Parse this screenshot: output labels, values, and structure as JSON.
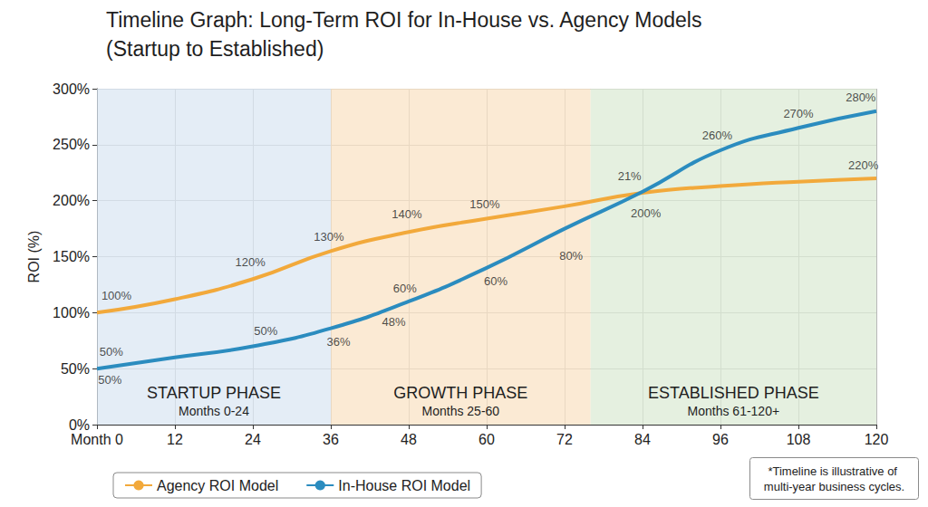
{
  "chart_data": {
    "type": "line",
    "title": "Timeline Graph: Long-Term ROI for In-House vs. Agency Models (Startup to Established)",
    "y_label": "ROI (%)",
    "x": [
      0,
      12,
      24,
      36,
      48,
      60,
      72,
      84,
      96,
      108,
      120
    ],
    "series": [
      {
        "name": "Agency ROI Model",
        "color": "#f2a93b",
        "marker": "none",
        "line_style": "solid",
        "values": [
          100,
          112,
          130,
          155,
          172,
          184,
          195,
          207,
          213,
          217,
          220
        ]
      },
      {
        "name": "In-House ROI Model",
        "color": "#2b8cbf",
        "marker": "none",
        "line_style": "solid",
        "values": [
          50,
          60,
          70,
          86,
          110,
          140,
          175,
          208,
          245,
          265,
          280
        ]
      }
    ],
    "xlim": [
      0,
      120
    ],
    "xticks": [
      {
        "value": 0,
        "label": "Month 0"
      },
      12,
      24,
      36,
      48,
      60,
      72,
      84,
      96,
      108,
      120
    ],
    "ylim": [
      0,
      300
    ],
    "yticks": [
      {
        "value": 0,
        "label": "0%"
      },
      {
        "value": 50,
        "label": "50%"
      },
      {
        "value": 100,
        "label": "100%"
      },
      {
        "value": 150,
        "label": "150%"
      },
      {
        "value": 200,
        "label": "200%"
      },
      {
        "value": 250,
        "label": "250%"
      },
      {
        "value": 300,
        "label": "300%"
      }
    ],
    "grid": true,
    "legend": "bottom",
    "phases": [
      {
        "label": "STARTUP PHASE",
        "sublabel": "Months 0-24",
        "start": 0,
        "end": 36,
        "color": "#dbe7f3"
      },
      {
        "label": "GROWTH PHASE",
        "sublabel": "Months 25-60",
        "start": 36,
        "end": 76,
        "color": "#fae3c6"
      },
      {
        "label": "ESTABLISHED PHASE",
        "sublabel": "Months 61-120+",
        "start": 76,
        "end": 120,
        "color": "#dcebd6"
      }
    ],
    "annotations": [
      {
        "text": "100%",
        "x": 3,
        "y": 115
      },
      {
        "text": "120%",
        "x": 23.6,
        "y": 145
      },
      {
        "text": "130%",
        "x": 35.7,
        "y": 168
      },
      {
        "text": "140%",
        "x": 47.7,
        "y": 188
      },
      {
        "text": "150%",
        "x": 59.7,
        "y": 197
      },
      {
        "text": "200%",
        "x": 84.5,
        "y": 189
      },
      {
        "text": "21%",
        "x": 82,
        "y": 222
      },
      {
        "text": "220%",
        "x": 118,
        "y": 232
      },
      {
        "text": "280%",
        "x": 117.6,
        "y": 292
      },
      {
        "text": "270%",
        "x": 108,
        "y": 278
      },
      {
        "text": "260%",
        "x": 95.5,
        "y": 258
      },
      {
        "text": "80%",
        "x": 73,
        "y": 151
      },
      {
        "text": "60%",
        "x": 61.4,
        "y": 128
      },
      {
        "text": "60%",
        "x": 47.4,
        "y": 122
      },
      {
        "text": "48%",
        "x": 45.7,
        "y": 92
      },
      {
        "text": "36%",
        "x": 37.2,
        "y": 74
      },
      {
        "text": "50%",
        "x": 26,
        "y": 84
      },
      {
        "text": "50%",
        "x": 2.2,
        "y": 65
      },
      {
        "text": "50%",
        "x": 2,
        "y": 40
      }
    ],
    "note": "*Timeline is illustrative of multi-year business cycles."
  }
}
